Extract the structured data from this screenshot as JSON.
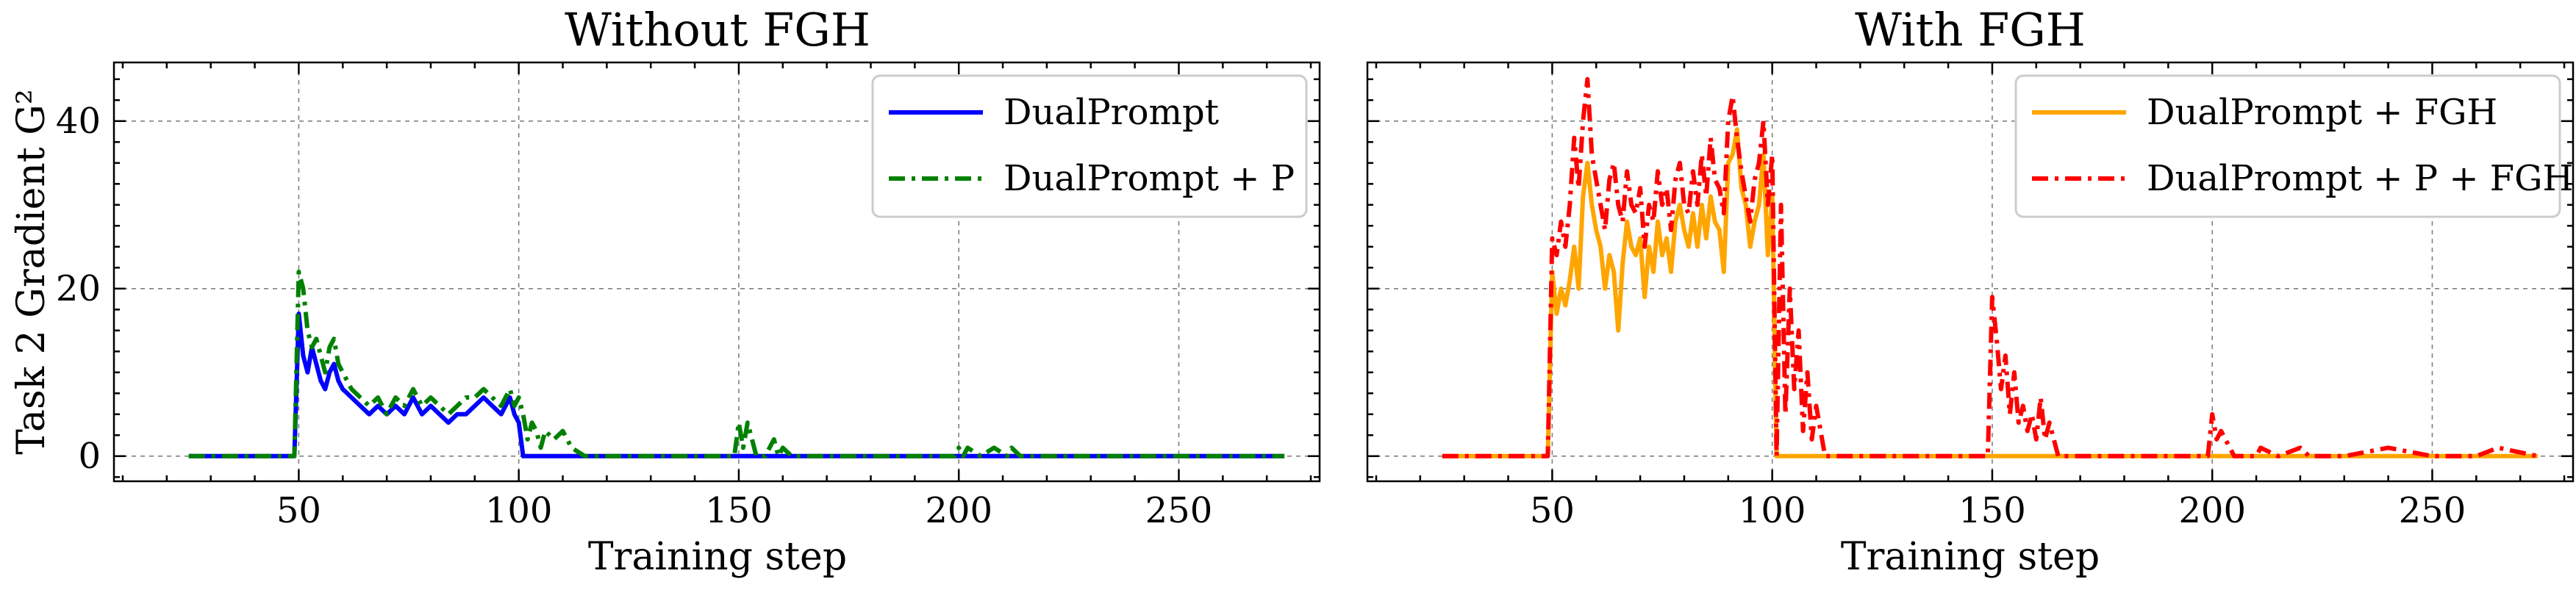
{
  "chart_data": [
    {
      "type": "line",
      "title": "Without FGH",
      "xlabel": "Training step",
      "ylabel": "Task 2 Gradient G²",
      "xlim": [
        8,
        282
      ],
      "ylim": [
        -3,
        47
      ],
      "xticks": [
        50,
        100,
        150,
        200,
        250
      ],
      "yticks": [
        0,
        20,
        40
      ],
      "grid": true,
      "legend_position": "top-right",
      "series": [
        {
          "name": "DualPrompt",
          "color": "#0000ff",
          "style": "solid",
          "x": [
            25,
            49,
            50,
            51,
            52,
            53,
            54,
            55,
            56,
            57,
            58,
            59,
            60,
            62,
            64,
            66,
            68,
            70,
            72,
            74,
            76,
            78,
            80,
            82,
            84,
            86,
            88,
            90,
            92,
            94,
            96,
            97,
            98,
            99,
            100,
            101,
            110,
            150,
            200,
            274
          ],
          "y": [
            0,
            0,
            17,
            12,
            10,
            13,
            11,
            9,
            8,
            10,
            11,
            9,
            8,
            7,
            6,
            5,
            6,
            5,
            6,
            5,
            7,
            5,
            6,
            5,
            4,
            5,
            5,
            6,
            7,
            6,
            5,
            6,
            7,
            5,
            4,
            0,
            0,
            0,
            0,
            0
          ]
        },
        {
          "name": "DualPrompt + P",
          "color": "#008000",
          "style": "dashdot",
          "x": [
            25,
            49,
            50,
            51,
            52,
            53,
            54,
            55,
            56,
            57,
            58,
            59,
            60,
            62,
            64,
            66,
            68,
            70,
            72,
            74,
            76,
            78,
            80,
            82,
            84,
            86,
            88,
            90,
            92,
            94,
            96,
            98,
            99,
            100,
            101,
            102,
            103,
            104,
            105,
            106,
            108,
            110,
            112,
            115,
            149,
            150,
            151,
            152,
            153,
            154,
            156,
            158,
            159,
            160,
            162,
            165,
            199,
            200,
            201,
            202,
            205,
            208,
            211,
            212,
            214,
            274
          ],
          "y": [
            0,
            0,
            22,
            20,
            15,
            13,
            14,
            12,
            10,
            13,
            14,
            11,
            10,
            8,
            7,
            6,
            7,
            5,
            7,
            6,
            8,
            6,
            7,
            6,
            5,
            6,
            7,
            7,
            8,
            7,
            6,
            8,
            6,
            7,
            5,
            2,
            4,
            3,
            1,
            3,
            2,
            3,
            1,
            0,
            0,
            4,
            1,
            4,
            2,
            0,
            0,
            2,
            0,
            1,
            0,
            0,
            0,
            1,
            0,
            1,
            0,
            1,
            0,
            1,
            0,
            0
          ]
        }
      ]
    },
    {
      "type": "line",
      "title": "With FGH",
      "xlabel": "Training step",
      "ylabel": "",
      "xlim": [
        8,
        282
      ],
      "ylim": [
        -3,
        47
      ],
      "xticks": [
        50,
        100,
        150,
        200,
        250
      ],
      "yticks": [
        0,
        20,
        40
      ],
      "grid": true,
      "legend_position": "top-right",
      "series": [
        {
          "name": "DualPrompt + FGH",
          "color": "#ffa500",
          "style": "solid",
          "x": [
            25,
            49,
            50,
            51,
            52,
            53,
            54,
            55,
            56,
            57,
            58,
            59,
            60,
            61,
            62,
            63,
            64,
            65,
            66,
            67,
            68,
            69,
            70,
            71,
            72,
            73,
            74,
            75,
            76,
            77,
            78,
            79,
            80,
            81,
            82,
            83,
            84,
            85,
            86,
            87,
            88,
            89,
            90,
            91,
            92,
            93,
            94,
            95,
            96,
            97,
            98,
            99,
            100,
            101,
            274
          ],
          "y": [
            0,
            0,
            22,
            17,
            20,
            18,
            21,
            25,
            20,
            31,
            35,
            30,
            27,
            25,
            20,
            24,
            22,
            15,
            23,
            28,
            25,
            24,
            26,
            19,
            25,
            22,
            28,
            24,
            26,
            22,
            28,
            30,
            27,
            25,
            29,
            25,
            30,
            26,
            31,
            28,
            27,
            22,
            35,
            36,
            39,
            32,
            30,
            25,
            28,
            30,
            36,
            24,
            31,
            0,
            0
          ]
        },
        {
          "name": "DualPrompt + P + FGH",
          "color": "#ff0000",
          "style": "dashdot",
          "x": [
            25,
            49,
            50,
            51,
            52,
            53,
            54,
            55,
            56,
            57,
            58,
            59,
            60,
            61,
            62,
            63,
            64,
            65,
            66,
            67,
            68,
            69,
            70,
            71,
            72,
            73,
            74,
            75,
            76,
            77,
            78,
            79,
            80,
            81,
            82,
            83,
            84,
            85,
            86,
            87,
            88,
            89,
            90,
            91,
            92,
            93,
            94,
            95,
            96,
            97,
            98,
            99,
            100,
            101,
            102,
            103,
            104,
            105,
            106,
            107,
            108,
            109,
            110,
            112,
            115,
            149,
            150,
            151,
            152,
            153,
            154,
            155,
            156,
            157,
            158,
            159,
            160,
            161,
            162,
            163,
            165,
            199,
            200,
            201,
            202,
            205,
            210,
            211,
            215,
            220,
            222,
            230,
            240,
            250,
            260,
            265,
            274
          ],
          "y": [
            0,
            0,
            26,
            24,
            28,
            25,
            30,
            38,
            32,
            40,
            45,
            36,
            33,
            30,
            27,
            33,
            35,
            30,
            28,
            34,
            30,
            29,
            32,
            25,
            30,
            28,
            34,
            30,
            32,
            27,
            33,
            35,
            30,
            29,
            34,
            30,
            36,
            31,
            38,
            33,
            32,
            29,
            40,
            43,
            38,
            34,
            31,
            28,
            33,
            35,
            40,
            30,
            36,
            0,
            30,
            5,
            20,
            8,
            15,
            3,
            10,
            2,
            6,
            0,
            0,
            0,
            19,
            14,
            8,
            12,
            5,
            10,
            4,
            6,
            3,
            5,
            2,
            7,
            2,
            4,
            0,
            0,
            5,
            2,
            3,
            0,
            0,
            1,
            0,
            1,
            0,
            0,
            1,
            0,
            0,
            1,
            0
          ]
        }
      ]
    }
  ]
}
